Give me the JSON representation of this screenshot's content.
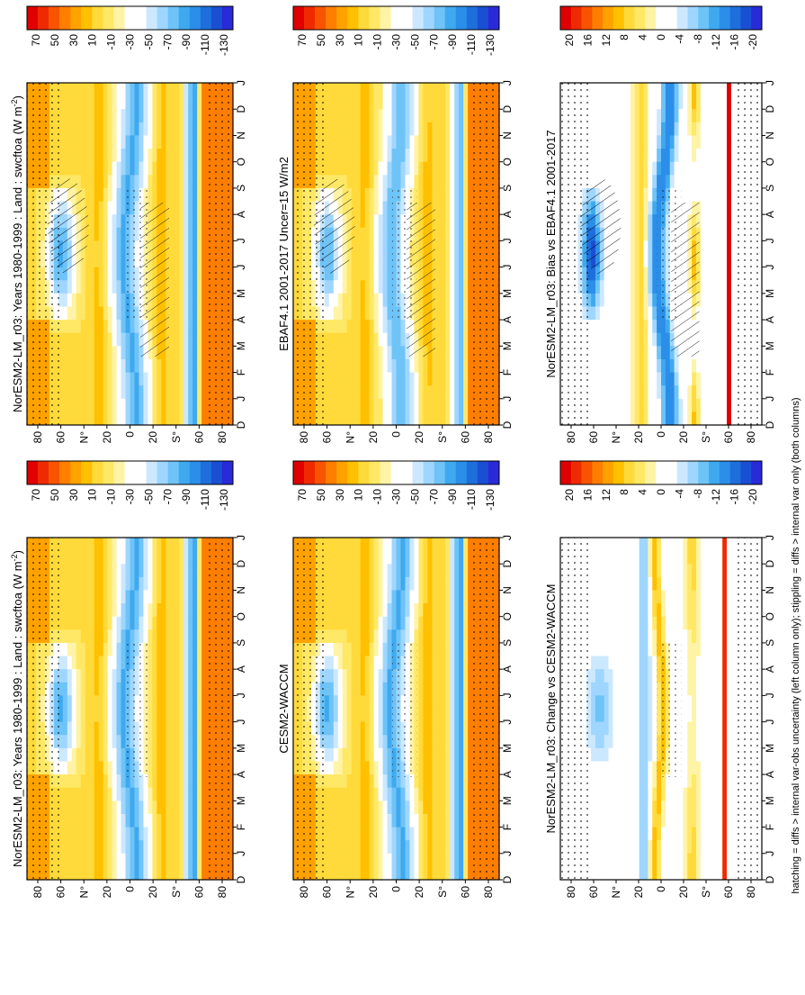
{
  "footnote": "hatching = diffs > internal var-obs uncertainty (left column only); stippling = diffs > internal var only (both columns)",
  "colors": {
    "field_scale": [
      "#e00000",
      "#f02a00",
      "#f85400",
      "#ff7e00",
      "#ffa200",
      "#ffc000",
      "#ffda3a",
      "#ffe866",
      "#fff3a6",
      "#ffffff",
      "#ffffff",
      "#cce8ff",
      "#9fd6ff",
      "#6ec3f7",
      "#3fa9ef",
      "#2b8ee8",
      "#1e6fdc",
      "#1a4fd4",
      "#2a2ad8"
    ],
    "diff_scale": [
      "#e00000",
      "#f02a00",
      "#f85400",
      "#ff7e00",
      "#ffa200",
      "#ffc000",
      "#ffda3a",
      "#ffe866",
      "#fff3a6",
      "#ffffff",
      "#ffffff",
      "#cce8ff",
      "#9fd6ff",
      "#6ec3f7",
      "#3fa9ef",
      "#2b8ee8",
      "#1e6fdc",
      "#1a4fd4",
      "#2a2ad8"
    ]
  },
  "chart_data": [
    {
      "id": "left-top",
      "type": "heatmap",
      "title": "NorESM2-LM_r03: Years 1980-1999 : Land : swcftoa (W m",
      "title_sup": "-2",
      "title_end": ")",
      "x_ticklabels": [
        "D",
        "J",
        "F",
        "M",
        "A",
        "M",
        "J",
        "J",
        "A",
        "S",
        "O",
        "N",
        "D",
        "J"
      ],
      "y_ticklabels": [
        "80",
        "60",
        "N",
        "20",
        "0",
        "20",
        "S",
        "60",
        "80"
      ],
      "y_units_shown": [
        "°",
        "°"
      ],
      "colorbar": {
        "labels": [
          "70",
          "50",
          "30",
          "10",
          "-10",
          "-30",
          "-50",
          "-70",
          "-90",
          "-110",
          "-130"
        ]
      },
      "hatching": true,
      "stippling": true,
      "field": "model"
    },
    {
      "id": "right-top",
      "type": "heatmap",
      "title": "NorESM2-LM_r03: Years 1980-1999 : Land : swcftoa (W m",
      "title_sup": "-2",
      "title_end": ")",
      "x_ticklabels": [
        "D",
        "J",
        "F",
        "M",
        "A",
        "M",
        "J",
        "J",
        "A",
        "S",
        "O",
        "N",
        "D",
        "J"
      ],
      "y_ticklabels": [
        "80",
        "60",
        "N",
        "20",
        "0",
        "20",
        "S",
        "60",
        "80"
      ],
      "colorbar": {
        "labels": [
          "70",
          "50",
          "30",
          "10",
          "-10",
          "-30",
          "-50",
          "-70",
          "-90",
          "-110",
          "-130"
        ]
      },
      "hatching": false,
      "stippling": true,
      "field": "model"
    },
    {
      "id": "left-middle",
      "type": "heatmap",
      "title": "EBAF4.1 2001-2017 Uncer=15 W/m2",
      "x_ticklabels": [
        "D",
        "J",
        "F",
        "M",
        "A",
        "M",
        "J",
        "J",
        "A",
        "S",
        "O",
        "N",
        "D",
        "J"
      ],
      "y_ticklabels": [
        "80",
        "60",
        "N",
        "20",
        "0",
        "20",
        "S",
        "60",
        "80"
      ],
      "colorbar": {
        "labels": [
          "70",
          "50",
          "30",
          "10",
          "-10",
          "-30",
          "-50",
          "-70",
          "-90",
          "-110",
          "-130"
        ]
      },
      "hatching": true,
      "stippling": true,
      "field": "obs"
    },
    {
      "id": "right-middle",
      "type": "heatmap",
      "title": "CESM2-WACCM",
      "x_ticklabels": [
        "D",
        "J",
        "F",
        "M",
        "A",
        "M",
        "J",
        "J",
        "A",
        "S",
        "O",
        "N",
        "D",
        "J"
      ],
      "y_ticklabels": [
        "80",
        "60",
        "N",
        "20",
        "0",
        "20",
        "S",
        "60",
        "80"
      ],
      "colorbar": {
        "labels": [
          "70",
          "50",
          "30",
          "10",
          "-10",
          "-30",
          "-50",
          "-70",
          "-90",
          "-110",
          "-130"
        ]
      },
      "hatching": false,
      "stippling": true,
      "field": "model"
    },
    {
      "id": "left-bottom",
      "type": "heatmap",
      "title": "NorESM2-LM_r03: Bias vs EBAF4.1 2001-2017",
      "x_ticklabels": [
        "D",
        "J",
        "F",
        "M",
        "A",
        "M",
        "J",
        "J",
        "A",
        "S",
        "O",
        "N",
        "D",
        "J"
      ],
      "y_ticklabels": [
        "80",
        "60",
        "N",
        "20",
        "0",
        "20",
        "S",
        "60",
        "80"
      ],
      "colorbar": {
        "labels": [
          "20",
          "16",
          "12",
          "8",
          "4",
          "0",
          "-4",
          "-8",
          "-12",
          "-16",
          "-20"
        ]
      },
      "hatching": true,
      "stippling": true,
      "field": "bias"
    },
    {
      "id": "right-bottom",
      "type": "heatmap",
      "title": "NorESM2-LM_r03: Change vs CESM2-WACCM",
      "x_ticklabels": [
        "D",
        "J",
        "F",
        "M",
        "A",
        "M",
        "J",
        "J",
        "A",
        "S",
        "O",
        "N",
        "D",
        "J"
      ],
      "y_ticklabels": [
        "80",
        "60",
        "N",
        "20",
        "0",
        "20",
        "S",
        "60",
        "80"
      ],
      "colorbar": {
        "labels": [
          "20",
          "16",
          "12",
          "8",
          "4",
          "0",
          "-4",
          "-8",
          "-12",
          "-16",
          "-20"
        ]
      },
      "hatching": false,
      "stippling": true,
      "field": "change"
    }
  ]
}
